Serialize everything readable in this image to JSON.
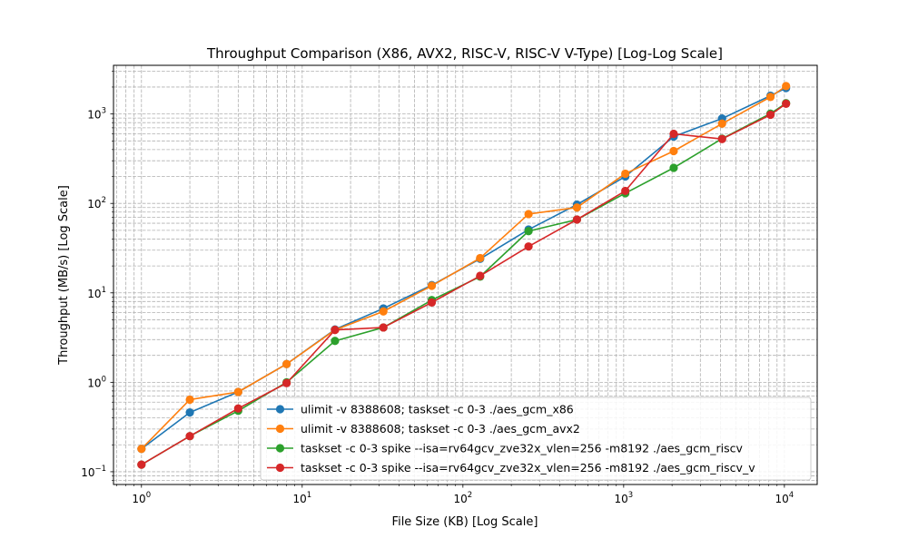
{
  "chart_data": {
    "type": "line",
    "title": "Throughput Comparison (X86, AVX2, RISC-V, RISC-V V-Type) [Log-Log Scale]",
    "xlabel": "File Size (KB) [Log Scale]",
    "ylabel": "Throughput (MB/s) [Log Scale]",
    "xscale": "log",
    "yscale": "log",
    "xlim": [
      0.67,
      16000
    ],
    "ylim": [
      0.072,
      3500
    ],
    "grid": true,
    "legend_position": "lower-right",
    "x_major_ticks": [
      {
        "value": 1,
        "base": "10",
        "exp": "0"
      },
      {
        "value": 10,
        "base": "10",
        "exp": "1"
      },
      {
        "value": 100,
        "base": "10",
        "exp": "2"
      },
      {
        "value": 1000,
        "base": "10",
        "exp": "3"
      },
      {
        "value": 10000,
        "base": "10",
        "exp": "4"
      }
    ],
    "y_major_ticks": [
      {
        "value": 0.1,
        "base": "10",
        "exp": "−1"
      },
      {
        "value": 1,
        "base": "10",
        "exp": "0"
      },
      {
        "value": 10,
        "base": "10",
        "exp": "1"
      },
      {
        "value": 100,
        "base": "10",
        "exp": "2"
      },
      {
        "value": 1000,
        "base": "10",
        "exp": "3"
      }
    ],
    "x": [
      1,
      2,
      4,
      8,
      16,
      32,
      64,
      128,
      256,
      512,
      1024,
      2048,
      4096,
      8192,
      10240
    ],
    "series": [
      {
        "name": "ulimit -v 8388608; taskset -c 0-3 ./aes_gcm_x86",
        "color": "#1f77b4",
        "values": [
          0.18,
          0.46,
          0.78,
          1.6,
          3.9,
          6.7,
          12.2,
          24.0,
          51.0,
          97.0,
          200.0,
          560.0,
          890.0,
          1600.0,
          1950.0
        ]
      },
      {
        "name": "ulimit -v 8388608; taskset -c 0-3 ./aes_gcm_avx2",
        "color": "#ff7f0e",
        "values": [
          0.18,
          0.64,
          0.78,
          1.6,
          3.85,
          6.2,
          12.0,
          24.5,
          76.0,
          90.0,
          215.0,
          385.0,
          780.0,
          1550.0,
          2050.0
        ]
      },
      {
        "name": "taskset -c 0-3 spike --isa=rv64gcv_zve32x_vlen=256 -m8192 ./aes_gcm_riscv",
        "color": "#2ca02c",
        "values": [
          0.12,
          0.25,
          0.48,
          1.0,
          2.9,
          4.1,
          8.3,
          15.2,
          49.0,
          66.0,
          130.0,
          250.0,
          530.0,
          1010.0,
          1320.0
        ]
      },
      {
        "name": "taskset -c 0-3 spike --isa=rv64gcv_zve32x_vlen=256 -m8192 ./aes_gcm_riscv_v",
        "color": "#d62728",
        "values": [
          0.12,
          0.25,
          0.51,
          0.98,
          3.85,
          4.1,
          7.8,
          15.5,
          33.0,
          66.0,
          138.0,
          600.0,
          525.0,
          980.0,
          1300.0
        ]
      }
    ]
  }
}
